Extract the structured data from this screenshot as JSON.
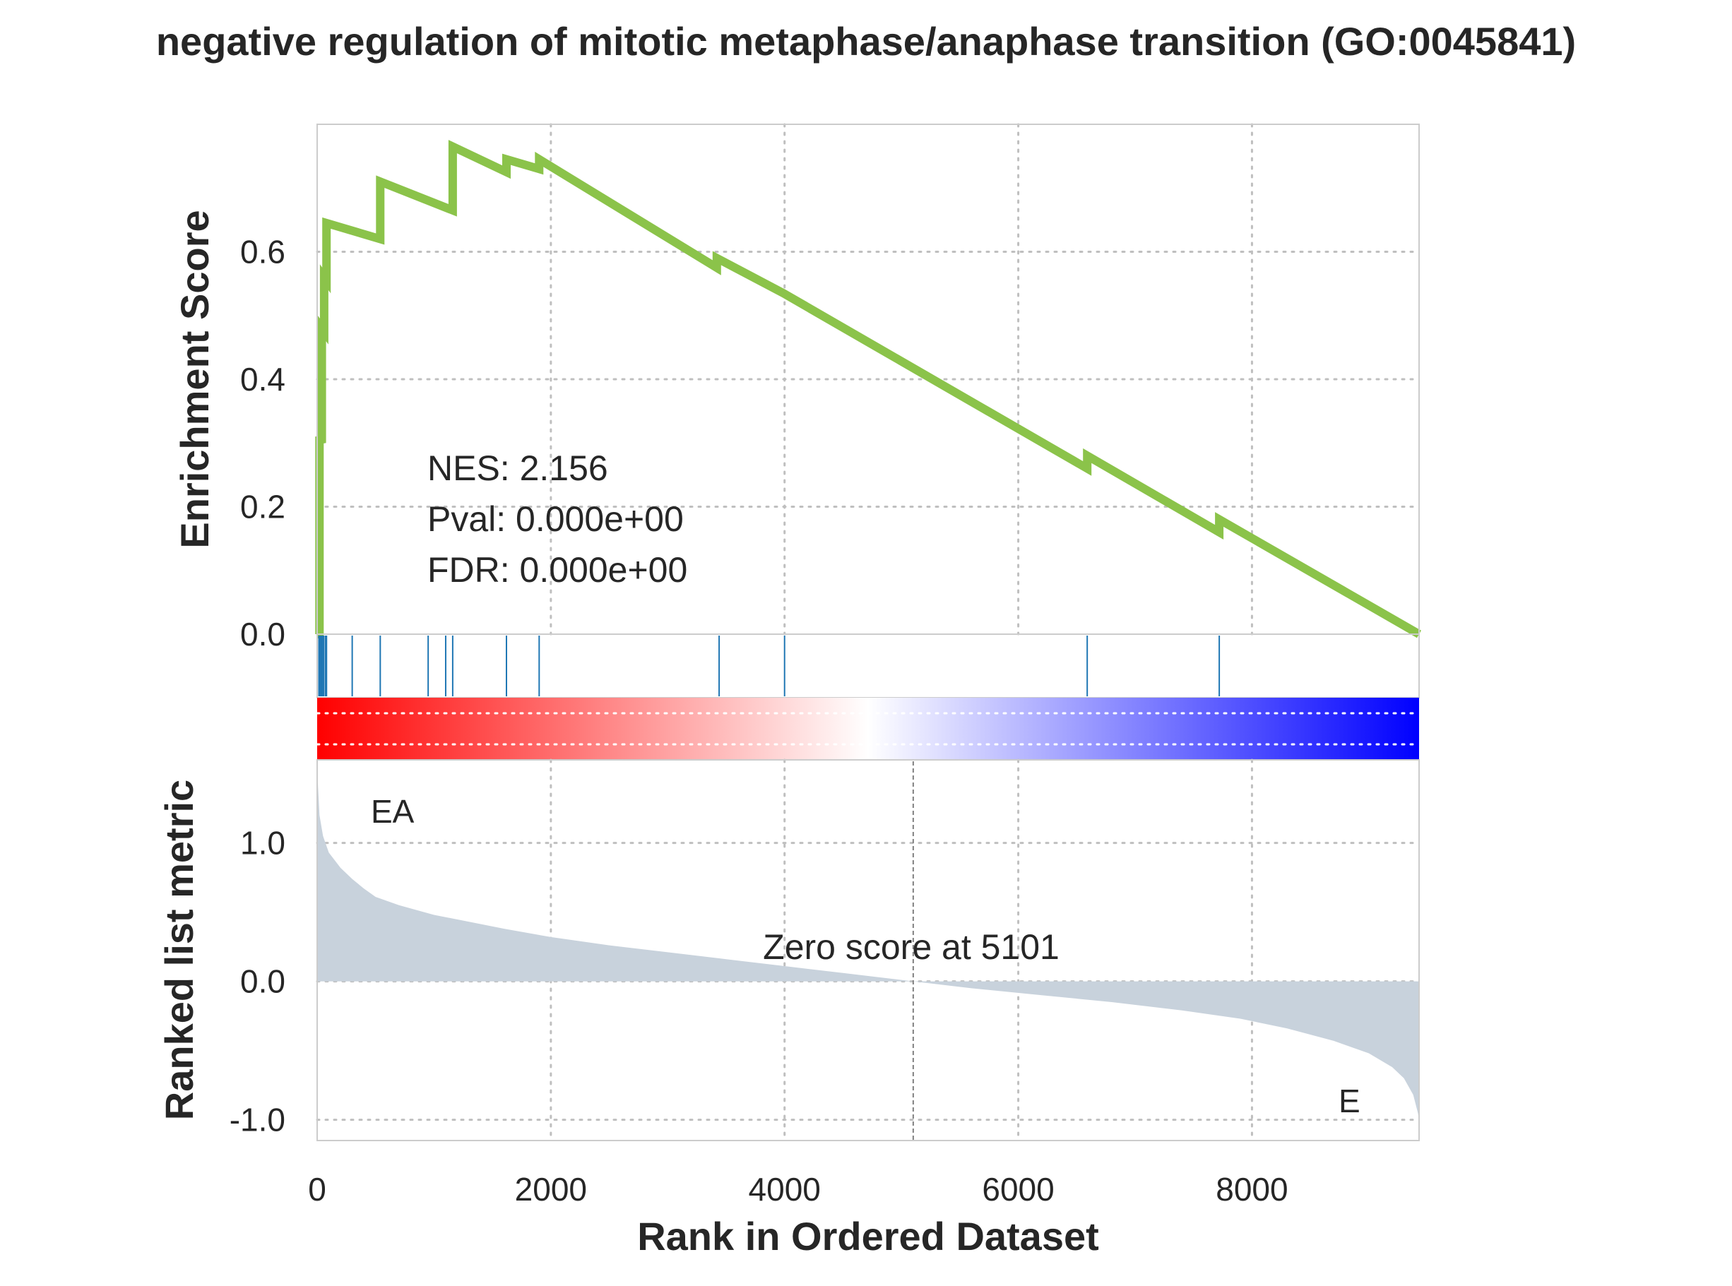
{
  "chart_data": {
    "type": "line",
    "title": "negative regulation of mitotic metaphase/anaphase transition (GO:0045841)",
    "xlabel": "Rank in Ordered Dataset",
    "xlim": [
      0,
      9430
    ],
    "xticks": [
      "0",
      "2000",
      "4000",
      "6000",
      "8000"
    ],
    "grid": true,
    "panels": {
      "enrichment": {
        "ylabel": "Enrichment Score",
        "ylim": [
          0,
          0.8
        ],
        "yticks": [
          "0.0",
          "0.2",
          "0.4",
          "0.6"
        ],
        "line_color": "#8bc34a",
        "series": {
          "x": [
            0,
            20,
            20,
            40,
            40,
            60,
            60,
            80,
            80,
            540,
            540,
            1160,
            1160,
            1620,
            1620,
            1900,
            1900,
            3420,
            3420,
            3990,
            3990,
            6590,
            6590,
            7720,
            7720,
            9430
          ],
          "y": [
            0.0,
            0.0,
            0.31,
            0.3,
            0.48,
            0.475,
            0.56,
            0.555,
            0.645,
            0.62,
            0.71,
            0.665,
            0.765,
            0.725,
            0.745,
            0.73,
            0.745,
            0.575,
            0.59,
            0.535,
            0.535,
            0.26,
            0.28,
            0.16,
            0.18,
            0.0
          ]
        },
        "stats": {
          "nes": "NES: 2.156",
          "pval": "Pval: 0.000e+00",
          "fdr": "FDR: 0.000e+00"
        }
      },
      "hits": {
        "color": "#1f77b4",
        "positions": [
          15,
          25,
          35,
          45,
          55,
          70,
          80,
          300,
          540,
          950,
          1100,
          1160,
          1620,
          1900,
          3440,
          4000,
          6590,
          7720
        ]
      },
      "colorbar": {
        "colors": [
          "#ff0000",
          "#ffffff",
          "#0000ff"
        ]
      },
      "ranked_metric": {
        "ylabel": "Ranked list metric",
        "ylim": [
          -1.15,
          1.6
        ],
        "yticks": [
          "-1.0",
          "0.0",
          "1.0"
        ],
        "fill_color": "#c8d2dc",
        "x": [
          0,
          8,
          20,
          50,
          100,
          200,
          300,
          400,
          500,
          700,
          1000,
          1300,
          1600,
          2000,
          2500,
          3000,
          3500,
          4000,
          4500,
          5101,
          5600,
          6200,
          6800,
          7400,
          7900,
          8300,
          8700,
          9000,
          9200,
          9300,
          9380,
          9420,
          9430
        ],
        "values": [
          1.55,
          1.4,
          1.2,
          1.05,
          0.93,
          0.82,
          0.74,
          0.67,
          0.61,
          0.55,
          0.48,
          0.43,
          0.38,
          0.32,
          0.26,
          0.21,
          0.16,
          0.11,
          0.06,
          0.0,
          -0.05,
          -0.1,
          -0.15,
          -0.21,
          -0.27,
          -0.34,
          -0.43,
          -0.52,
          -0.62,
          -0.7,
          -0.82,
          -0.95,
          -1.0
        ],
        "zero_cross": 5101,
        "zero_label": "Zero score at 5101",
        "pos_label": "EA",
        "pos_label_color": "#ff0000",
        "neg_label": "E",
        "neg_label_color": "#0000ff"
      }
    }
  }
}
